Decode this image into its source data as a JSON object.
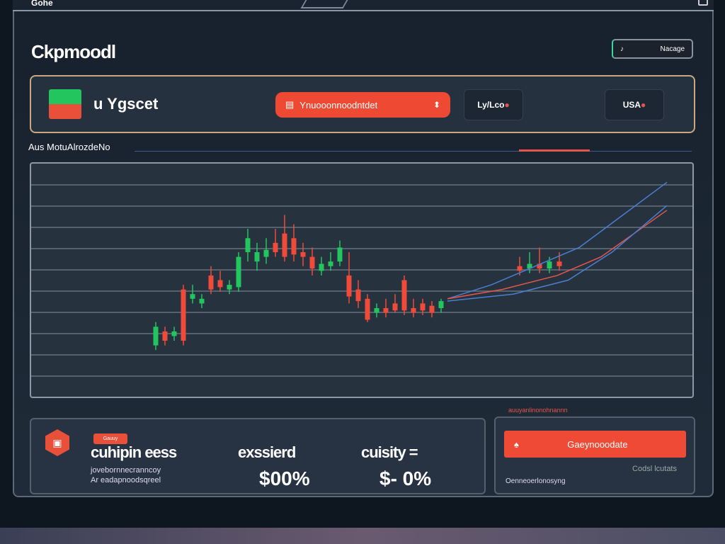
{
  "window": {
    "title": "Gohe"
  },
  "header": {
    "title": "Ckpmoodl",
    "toggle_icon": "d-icon",
    "toggle_label": "Nacage"
  },
  "panel": {
    "name": "u Ygscet",
    "select_value": "Ynuooonnoodntdet",
    "select_icon": "document-icon",
    "btn1": "Ly/Lco",
    "btn2": "USA"
  },
  "section_label": "Aus MotuAlrozdeNo",
  "chart_data": {
    "type": "candlestick",
    "title": "",
    "xlabel": "",
    "ylabel": "",
    "grid": true,
    "ylim": [
      0,
      100
    ],
    "colors": {
      "up": "#22c55e",
      "down": "#ef4a3a",
      "line1": "#4a7fd0",
      "line2": "#e5554a"
    },
    "candles": [
      [
        22,
        30,
        32,
        20
      ],
      [
        28,
        24,
        30,
        22
      ],
      [
        26,
        28,
        30,
        24
      ],
      [
        46,
        24,
        48,
        22
      ],
      [
        42,
        44,
        48,
        40
      ],
      [
        40,
        42,
        44,
        38
      ],
      [
        52,
        46,
        56,
        44
      ],
      [
        50,
        47,
        54,
        45
      ],
      [
        46,
        48,
        50,
        44
      ],
      [
        47,
        60,
        62,
        45
      ],
      [
        62,
        68,
        72,
        58
      ],
      [
        58,
        62,
        66,
        54
      ],
      [
        60,
        63,
        68,
        57
      ],
      [
        66,
        62,
        72,
        60
      ],
      [
        70,
        60,
        78,
        58
      ],
      [
        68,
        61,
        74,
        58
      ],
      [
        62,
        60,
        66,
        56
      ],
      [
        60,
        55,
        64,
        52
      ],
      [
        54,
        57,
        60,
        52
      ],
      [
        56,
        58,
        62,
        54
      ],
      [
        58,
        64,
        67,
        56
      ],
      [
        52,
        43,
        62,
        40
      ],
      [
        46,
        41,
        50,
        38
      ],
      [
        42,
        33,
        44,
        32
      ],
      [
        36,
        38,
        40,
        34
      ],
      [
        38,
        36,
        42,
        34
      ],
      [
        40,
        37,
        44,
        36
      ],
      [
        50,
        37,
        52,
        35
      ],
      [
        38,
        36,
        42,
        34
      ],
      [
        40,
        37,
        42,
        35
      ],
      [
        39,
        36,
        41,
        34
      ],
      [
        38,
        41,
        42,
        36
      ]
    ],
    "cluster": [
      [
        56,
        54,
        60,
        52
      ],
      [
        55,
        57,
        62,
        53
      ],
      [
        57,
        55,
        64,
        53
      ],
      [
        55,
        58,
        60,
        53
      ],
      [
        58,
        56,
        62,
        54
      ]
    ],
    "lines": [
      [
        [
          0,
          42
        ],
        [
          20,
          48
        ],
        [
          40,
          56
        ],
        [
          60,
          64
        ],
        [
          80,
          78
        ],
        [
          100,
          92
        ]
      ],
      [
        [
          0,
          42
        ],
        [
          25,
          46
        ],
        [
          50,
          52
        ],
        [
          70,
          60
        ],
        [
          85,
          70
        ],
        [
          100,
          80
        ]
      ],
      [
        [
          0,
          41
        ],
        [
          30,
          44
        ],
        [
          55,
          50
        ],
        [
          75,
          62
        ],
        [
          90,
          74
        ],
        [
          100,
          82
        ]
      ]
    ]
  },
  "bottom": {
    "badge": "Gauuy",
    "icon": "camera-icon",
    "title": "cuhipin eess",
    "line1": "jovebornnecranncoy",
    "line2": "Ar eadapnoodsqreel",
    "col1_label": "exssierd",
    "col1_value": "$00%",
    "col2_label": "cuisity =",
    "col2_value": "$- 0%"
  },
  "right": {
    "label": "auuyanlinonohnannn",
    "button": "Gaeynooodate",
    "button_icon": "spade-icon",
    "link": "Codsl lcutats",
    "foot": "Oenneoerlonosyng"
  }
}
